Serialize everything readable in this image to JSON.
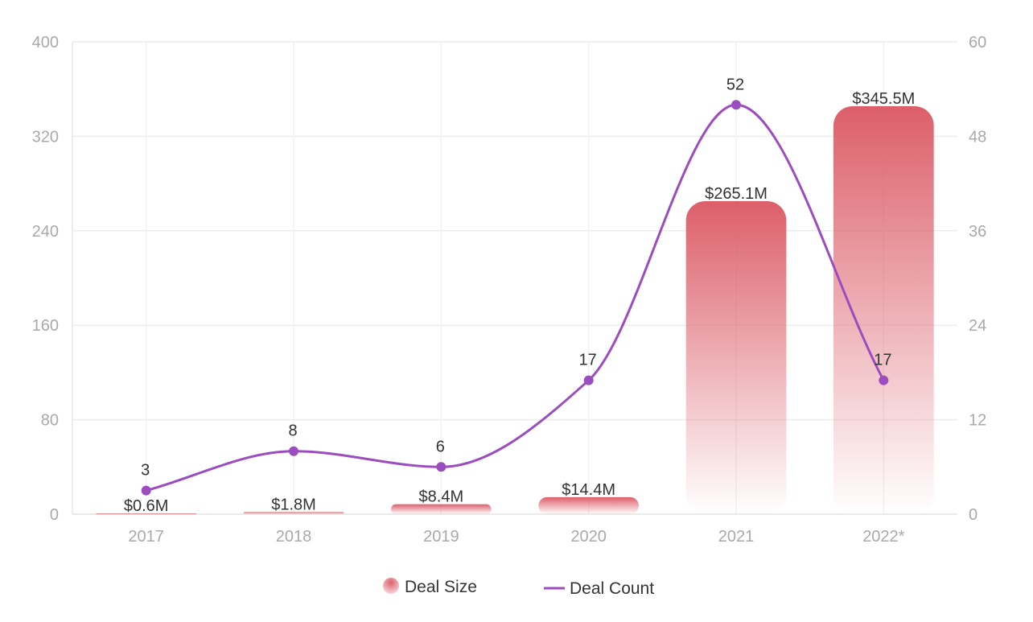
{
  "chart_data": {
    "type": "bar",
    "categories": [
      "2017",
      "2018",
      "2019",
      "2020",
      "2021",
      "2022*"
    ],
    "series": [
      {
        "name": "Deal Size",
        "type": "bar",
        "axis": "left",
        "values": [
          0.6,
          1.8,
          8.4,
          14.4,
          265.1,
          345.5
        ],
        "labels": [
          "$0.6M",
          "$1.8M",
          "$8.4M",
          "$14.4M",
          "$265.1M",
          "$345.5M"
        ],
        "color": "#dc5f6a"
      },
      {
        "name": "Deal Count",
        "type": "line",
        "axis": "right",
        "values": [
          3,
          8,
          6,
          17,
          52,
          17
        ],
        "labels": [
          "3",
          "8",
          "6",
          "17",
          "52",
          "17"
        ],
        "color": "#9b4dbf"
      }
    ],
    "y_left": {
      "ticks": [
        "0",
        "80",
        "160",
        "240",
        "320",
        "400"
      ],
      "ylim": [
        0,
        400
      ]
    },
    "y_right": {
      "ticks": [
        "0",
        "12",
        "24",
        "36",
        "48",
        "60"
      ],
      "ylim": [
        0,
        60
      ]
    },
    "grid": true,
    "legend_position": "bottom-center",
    "legend": [
      "Deal Size",
      "Deal Count"
    ]
  }
}
